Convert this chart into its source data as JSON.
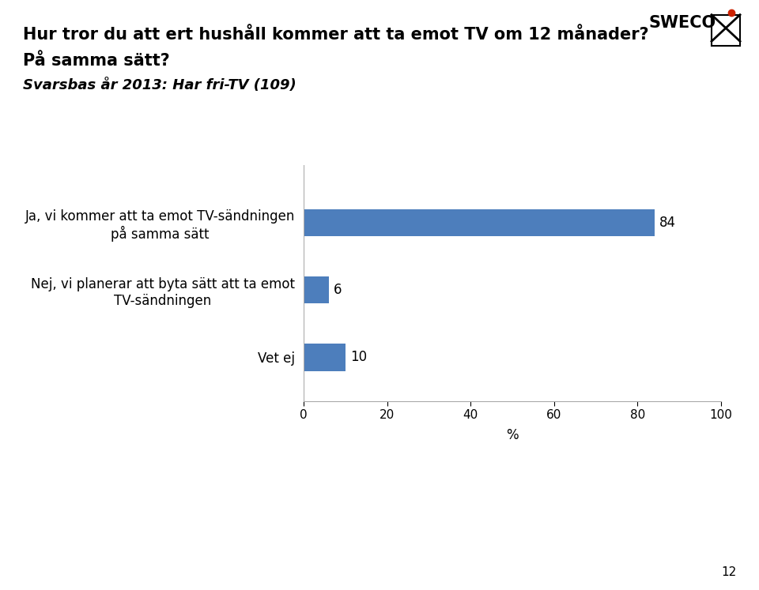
{
  "title_line1": "Hur tror du att ert hushåll kommer att ta emot TV om 12 månader?",
  "title_line2": "På samma sätt?",
  "title_line3": "Svarsbas år 2013: Har fri-TV (109)",
  "categories": [
    "Ja, vi kommer att ta emot TV-sändningen\npå samma sätt",
    "Nej, vi planerar att byta sätt att ta emot\nTV-sändningen",
    "Vet ej"
  ],
  "values": [
    84,
    6,
    10
  ],
  "bar_color": "#4D7EBC",
  "xlabel": "%",
  "xlim": [
    0,
    100
  ],
  "xticks": [
    0,
    20,
    40,
    60,
    80,
    100
  ],
  "bar_height": 0.4,
  "background_color": "#ffffff",
  "page_number": "12",
  "value_fontsize": 12,
  "label_fontsize": 12,
  "title_fontsize_main": 15,
  "title_fontsize_sub": 13,
  "sweco_text": "SWECO"
}
